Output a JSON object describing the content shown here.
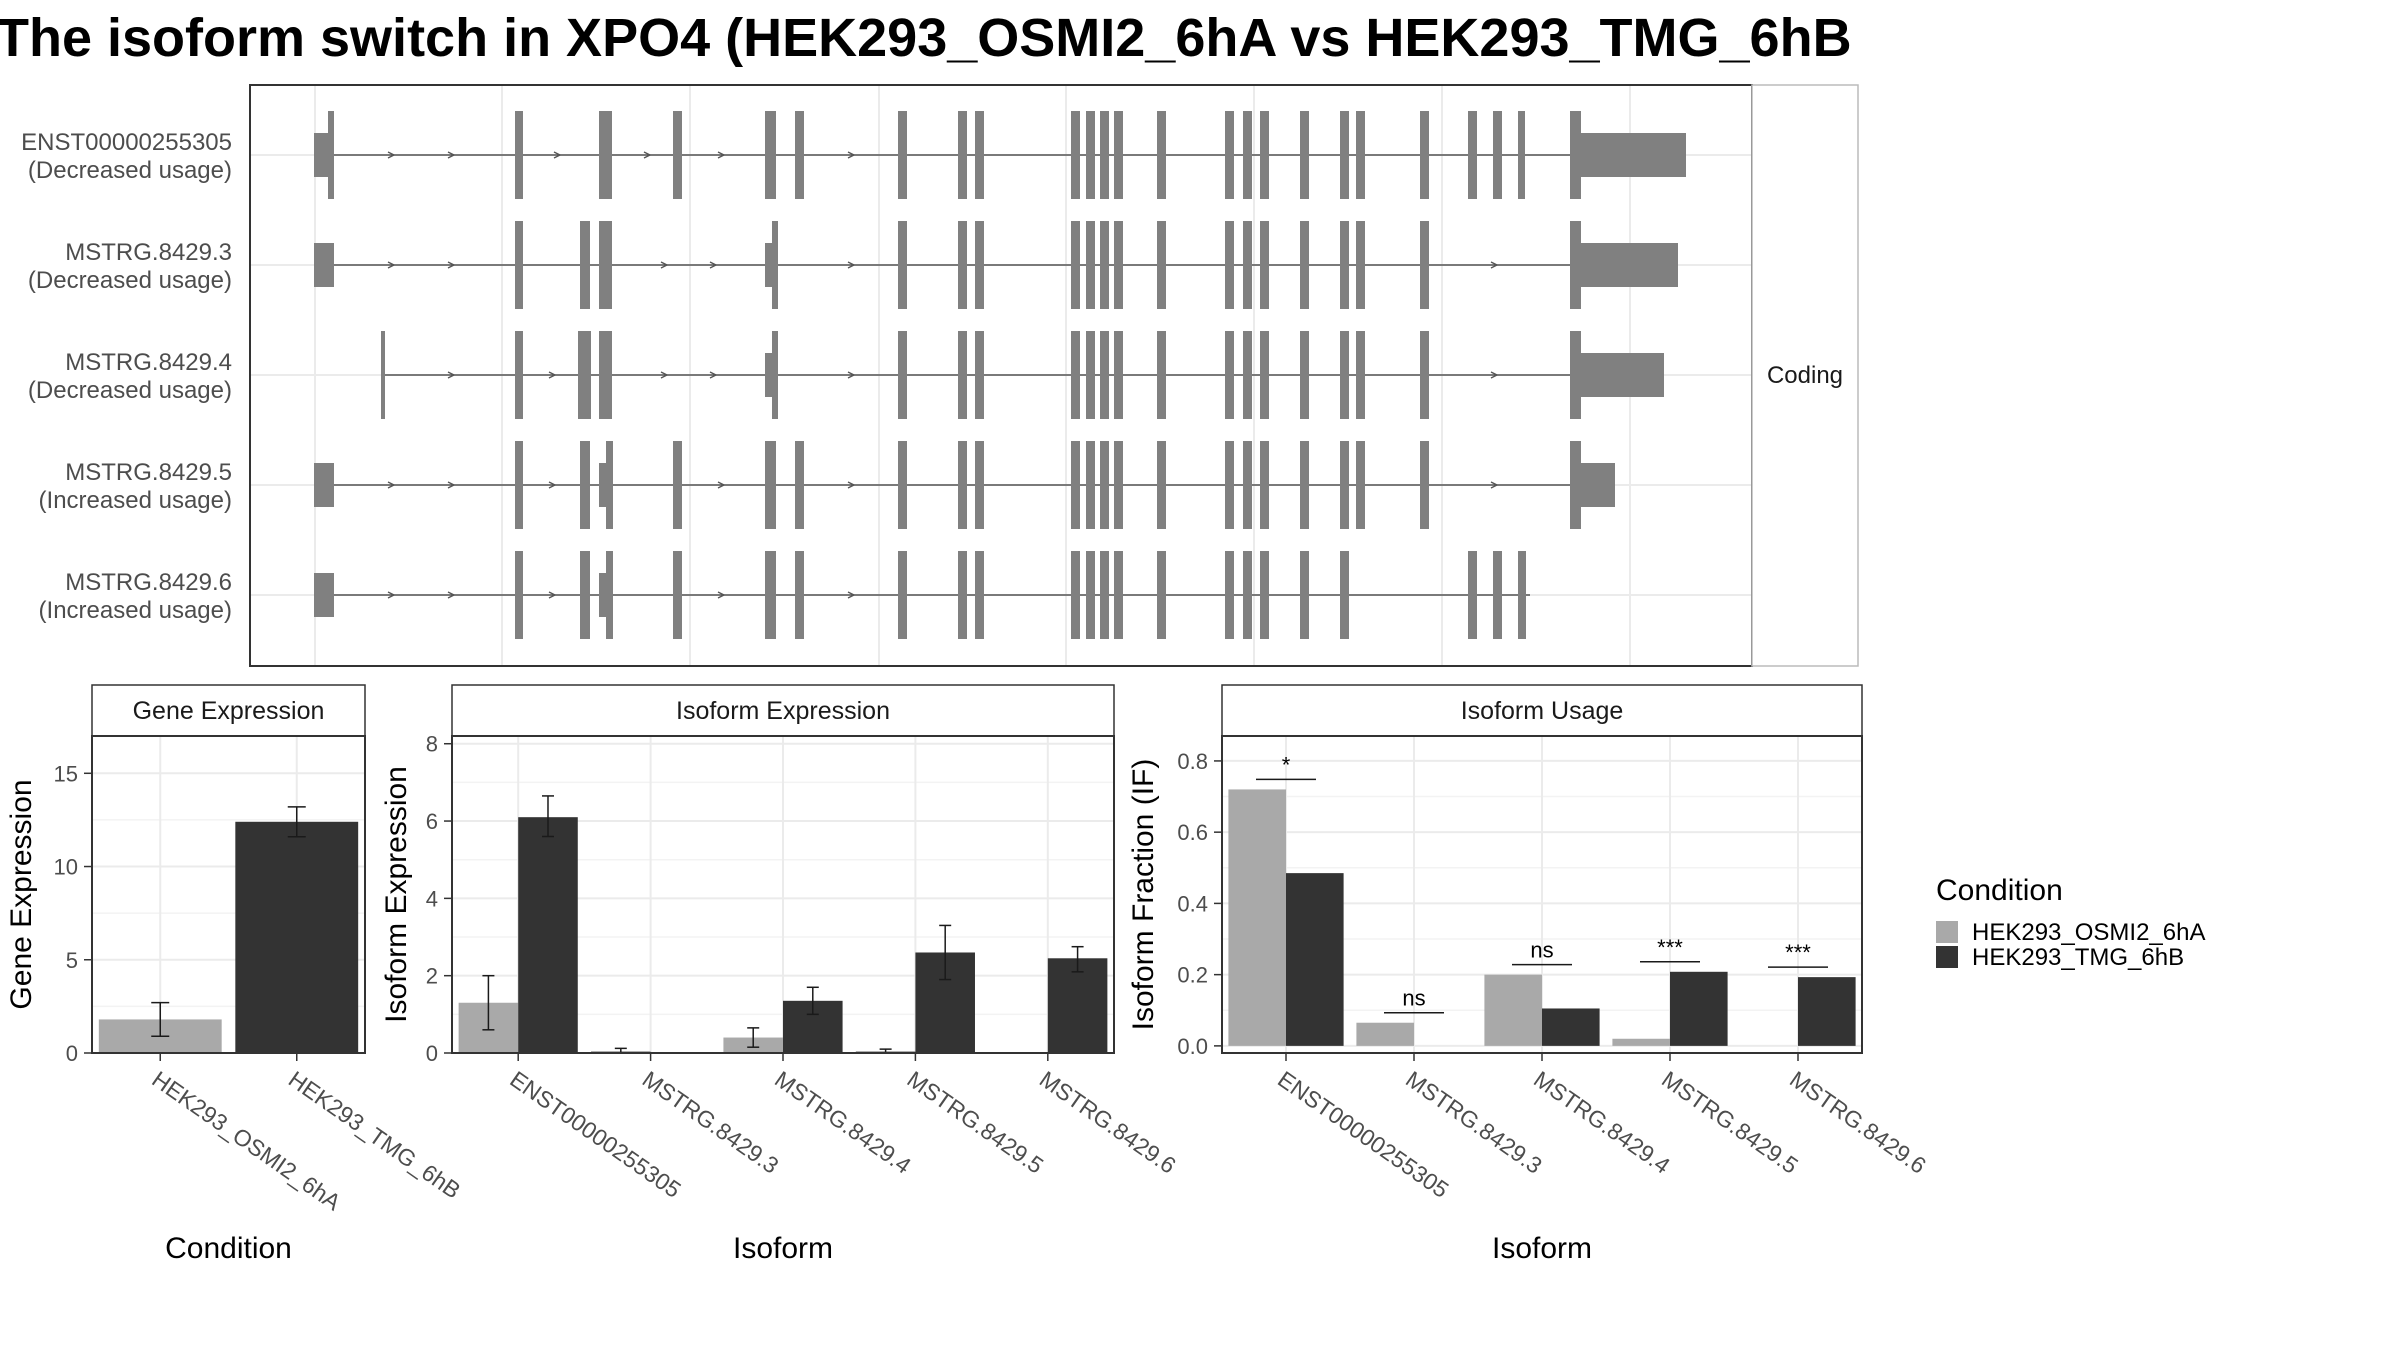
{
  "title": "The isoform switch in XPO4 (HEK293_OSMI2_6hA vs HEK293_TMG_6hB",
  "chart_data": [
    {
      "type": "gene-structure",
      "strip_label": "Coding",
      "isoforms": [
        {
          "id": "ENST00000255305",
          "usage": "(Decreased usage)"
        },
        {
          "id": "MSTRG.8429.3",
          "usage": "(Decreased usage)"
        },
        {
          "id": "MSTRG.8429.4",
          "usage": "(Decreased usage)"
        },
        {
          "id": "MSTRG.8429.5",
          "usage": "(Increased usage)"
        },
        {
          "id": "MSTRG.8429.6",
          "usage": "(Increased usage)"
        }
      ]
    },
    {
      "type": "bar",
      "title": "Gene Expression",
      "xlabel": "Condition",
      "ylabel": "Gene Expression",
      "ylim": [
        0,
        17
      ],
      "yticks": [
        0,
        5,
        10,
        15
      ],
      "categories": [
        "HEK293_OSMI2_6hA",
        "HEK293_TMG_6hB"
      ],
      "values": [
        1.8,
        12.4
      ],
      "errors": [
        [
          0.9,
          2.7
        ],
        [
          11.6,
          13.2
        ]
      ],
      "colors": [
        "#a9a9a9",
        "#333333"
      ]
    },
    {
      "type": "bar",
      "title": "Isoform Expression",
      "xlabel": "Isoform",
      "ylabel": "Isoform Expression",
      "ylim": [
        0,
        8.2
      ],
      "yticks": [
        0,
        2,
        4,
        6,
        8
      ],
      "categories": [
        "ENST00000255305",
        "MSTRG.8429.3",
        "MSTRG.8429.4",
        "MSTRG.8429.5",
        "MSTRG.8429.6"
      ],
      "series": [
        {
          "name": "HEK293_OSMI2_6hA",
          "values": [
            1.3,
            0.05,
            0.4,
            0.05,
            0.0
          ],
          "errors": [
            [
              0.6,
              2.0
            ],
            [
              0.0,
              0.12
            ],
            [
              0.15,
              0.65
            ],
            [
              0.0,
              0.1
            ],
            [
              0.0,
              0.0
            ]
          ]
        },
        {
          "name": "HEK293_TMG_6hB",
          "values": [
            6.1,
            0.0,
            1.35,
            2.6,
            2.45
          ],
          "errors": [
            [
              5.6,
              6.65
            ],
            [
              0.0,
              0.0
            ],
            [
              1.0,
              1.7
            ],
            [
              1.9,
              3.3
            ],
            [
              2.1,
              2.75
            ]
          ]
        }
      ]
    },
    {
      "type": "bar",
      "title": "Isoform Usage",
      "xlabel": "Isoform",
      "ylabel": "Isoform Fraction (IF)",
      "ylim": [
        -0.02,
        0.87
      ],
      "yticks": [
        "0.0",
        "0.2",
        "0.4",
        "0.6",
        "0.8"
      ],
      "categories": [
        "ENST00000255305",
        "MSTRG.8429.3",
        "MSTRG.8429.4",
        "MSTRG.8429.5",
        "MSTRG.8429.6"
      ],
      "series": [
        {
          "name": "HEK293_OSMI2_6hA",
          "values": [
            0.72,
            0.065,
            0.2,
            0.02,
            0.0
          ]
        },
        {
          "name": "HEK293_TMG_6hB",
          "values": [
            0.485,
            0.0,
            0.105,
            0.208,
            0.193
          ]
        }
      ],
      "significance": [
        "*",
        "ns",
        "ns",
        "***",
        "***"
      ]
    }
  ],
  "legend": {
    "title": "Condition",
    "items": [
      {
        "label": "HEK293_OSMI2_6hA",
        "color": "#a9a9a9"
      },
      {
        "label": "HEK293_TMG_6hB",
        "color": "#333333"
      }
    ]
  }
}
